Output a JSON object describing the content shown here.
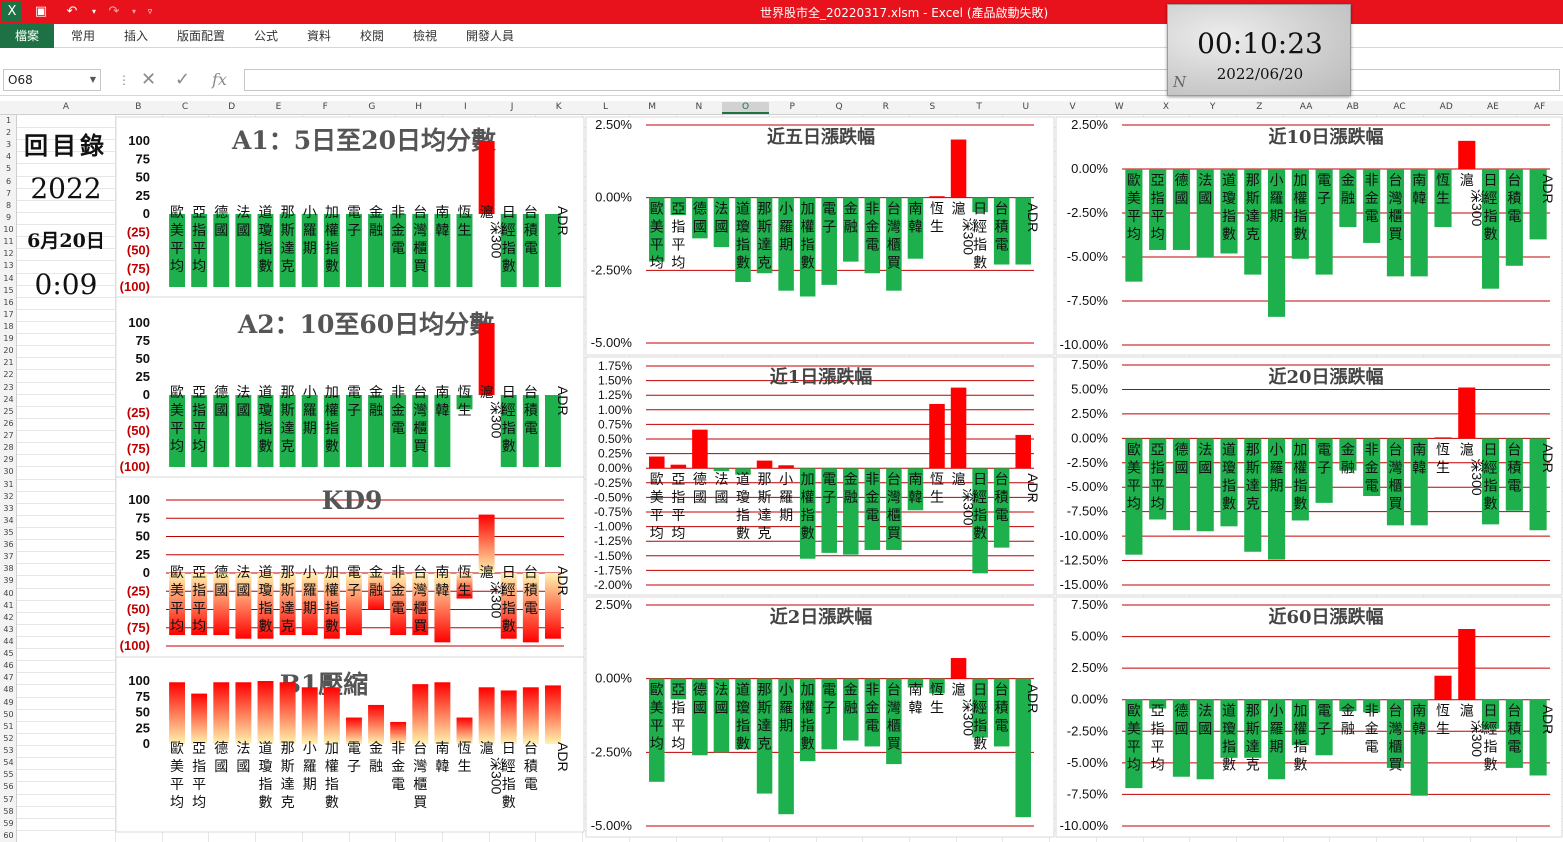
{
  "window": {
    "title": "世界股市全_20220317.xlsm  -  Excel (產品啟動失敗)"
  },
  "quick_access": {
    "save": "save-icon",
    "undo": "undo-icon",
    "redo": "redo-icon",
    "customize": "customize-icon"
  },
  "ribbon": {
    "tabs": [
      "檔案",
      "常用",
      "插入",
      "版面配置",
      "公式",
      "資料",
      "校閱",
      "檢視",
      "開發人員"
    ]
  },
  "formula_bar": {
    "name_box": "O68",
    "formula": ""
  },
  "columns": [
    "A",
    "B",
    "C",
    "D",
    "E",
    "F",
    "G",
    "H",
    "I",
    "J",
    "K",
    "L",
    "M",
    "N",
    "O",
    "P",
    "Q",
    "R",
    "S",
    "T",
    "U",
    "V",
    "W",
    "X",
    "Y",
    "Z",
    "AA",
    "AB",
    "AC",
    "AD",
    "AE",
    "AF"
  ],
  "rows_count": 60,
  "clock": {
    "time": "00:10:23",
    "date": "2022/06/20",
    "logo": "N"
  },
  "index_panel": {
    "title": "回目錄",
    "year": "2022",
    "date": "6月20日",
    "time": "0:09"
  },
  "colors": {
    "green": "#1db04d",
    "red": "#ff0000",
    "title_red": "#e8121c",
    "excel_green": "#1e7145",
    "gridline": "#c00000"
  },
  "markets": [
    "歐美平均",
    "亞指平均",
    "德國",
    "法國",
    "道瓊指數",
    "那斯達克",
    "小羅期",
    "加權指數",
    "電子",
    "金融",
    "非金電",
    "台灣櫃買",
    "南韓",
    "恆生",
    "滬深300",
    "日經指數",
    "台積電",
    "ADR"
  ],
  "charts": [
    {
      "id": "a1",
      "title": "A1：5日至20日均分數",
      "type": "bar",
      "yticks": [
        "100",
        "75",
        "50",
        "25",
        "0",
        "(25)",
        "(50)",
        "(75)",
        "(100)"
      ],
      "ylim": [
        -100,
        100
      ],
      "values": [
        -100,
        -100,
        -100,
        -100,
        -100,
        -100,
        -100,
        -100,
        -100,
        -100,
        -100,
        -100,
        -100,
        -100,
        100,
        -100,
        -100,
        -100
      ]
    },
    {
      "id": "a2",
      "title": "A2：10至60日均分數",
      "type": "bar",
      "yticks": [
        "100",
        "75",
        "50",
        "25",
        "0",
        "(25)",
        "(50)",
        "(75)",
        "(100)"
      ],
      "ylim": [
        -100,
        100
      ],
      "values": [
        -100,
        -100,
        -100,
        -100,
        -100,
        -100,
        -100,
        -100,
        -100,
        -100,
        -100,
        -100,
        -100,
        -20,
        100,
        -100,
        -100,
        -100
      ]
    },
    {
      "id": "kd9",
      "title": "KD9",
      "type": "bar",
      "yticks": [
        "100",
        "75",
        "50",
        "25",
        "0",
        "(25)",
        "(50)",
        "(75)",
        "(100)"
      ],
      "ylim": [
        -100,
        100
      ],
      "values": [
        -85,
        -85,
        -85,
        -90,
        -90,
        -85,
        -85,
        -90,
        -85,
        -50,
        -85,
        -85,
        -95,
        -35,
        80,
        -90,
        -95,
        -90
      ]
    },
    {
      "id": "b1",
      "title": "B1壓縮",
      "type": "bar",
      "yticks": [
        "100",
        "75",
        "50",
        "25",
        "0"
      ],
      "ylim": [
        0,
        100
      ],
      "values": [
        98,
        80,
        98,
        98,
        100,
        98,
        90,
        90,
        42,
        62,
        35,
        95,
        98,
        42,
        90,
        85,
        90,
        93
      ]
    },
    {
      "id": "d5",
      "title": "近五日漲跌幅",
      "type": "bar",
      "yticks": [
        "2.50%",
        "0.00%",
        "-2.50%",
        "-5.00%"
      ],
      "ylim": [
        -5,
        2.5
      ],
      "values": [
        -2.2,
        -0.6,
        -1.4,
        -1.7,
        -2.9,
        -2.6,
        -3.2,
        -3.4,
        -3.0,
        -2.2,
        -2.6,
        -3.2,
        -2.1,
        0.05,
        2.0,
        -0.5,
        -2.3,
        -2.3
      ]
    },
    {
      "id": "d10",
      "title": "近10日漲跌幅",
      "type": "bar",
      "yticks": [
        "2.50%",
        "0.00%",
        "-2.50%",
        "-5.00%",
        "-7.50%",
        "-10.00%"
      ],
      "ylim": [
        -10,
        2.5
      ],
      "values": [
        -6.4,
        -4.6,
        -4.6,
        -5.0,
        -4.8,
        -6.0,
        -8.4,
        -5.1,
        -6.0,
        -3.3,
        -4.2,
        -6.1,
        -6.1,
        -3.3,
        1.6,
        -6.8,
        -5.5,
        -4.0
      ]
    },
    {
      "id": "d1",
      "title": "近1日漲跌幅",
      "type": "bar",
      "yticks": [
        "1.75%",
        "1.50%",
        "1.25%",
        "1.00%",
        "0.75%",
        "0.50%",
        "0.25%",
        "0.00%",
        "-0.25%",
        "-0.50%",
        "-0.75%",
        "-1.00%",
        "-1.25%",
        "-1.50%",
        "-1.75%",
        "-2.00%"
      ],
      "ylim": [
        -2,
        1.75
      ],
      "values": [
        0.2,
        0.06,
        0.66,
        -0.05,
        -0.11,
        0.13,
        0.05,
        -1.55,
        -1.45,
        -1.48,
        -1.4,
        -1.4,
        -0.72,
        1.1,
        1.38,
        -1.8,
        -1.36,
        0.57
      ]
    },
    {
      "id": "d20",
      "title": "近20日漲跌幅",
      "type": "bar",
      "yticks": [
        "7.50%",
        "5.00%",
        "2.50%",
        "0.00%",
        "-2.50%",
        "-5.00%",
        "-7.50%",
        "-10.00%",
        "-12.50%",
        "-15.00%"
      ],
      "ylim": [
        -15,
        7.5
      ],
      "values": [
        -11.9,
        -8.3,
        -9.4,
        -9.5,
        -9.0,
        -11.6,
        -12.4,
        -8.4,
        -6.6,
        -3.3,
        -5.9,
        -8.9,
        -8.9,
        0.1,
        5.2,
        -8.8,
        -7.4,
        -9.4
      ]
    },
    {
      "id": "d2",
      "title": "近2日漲跌幅",
      "type": "bar",
      "yticks": [
        "2.50%",
        "0.00%",
        "-2.50%",
        "-5.00%"
      ],
      "ylim": [
        -5,
        2.5
      ],
      "values": [
        -3.5,
        -0.7,
        -2.6,
        -2.5,
        -2.4,
        -3.9,
        -4.6,
        -2.8,
        -2.4,
        -2.1,
        -2.3,
        -2.9,
        -0.3,
        -0.5,
        0.7,
        -2.0,
        -2.3,
        -4.7
      ]
    },
    {
      "id": "d60",
      "title": "近60日漲跌幅",
      "type": "bar",
      "yticks": [
        "7.50%",
        "5.00%",
        "2.50%",
        "0.00%",
        "-2.50%",
        "-5.00%",
        "-7.50%",
        "-10.00%"
      ],
      "ylim": [
        -10,
        7.5
      ],
      "values": [
        -7.0,
        -0.7,
        -6.1,
        -6.3,
        -4.6,
        -4.6,
        -6.3,
        -3.6,
        -4.4,
        -0.9,
        -1.0,
        -5.4,
        -7.6,
        1.9,
        5.6,
        -2.3,
        -5.4,
        -6.0
      ]
    }
  ]
}
